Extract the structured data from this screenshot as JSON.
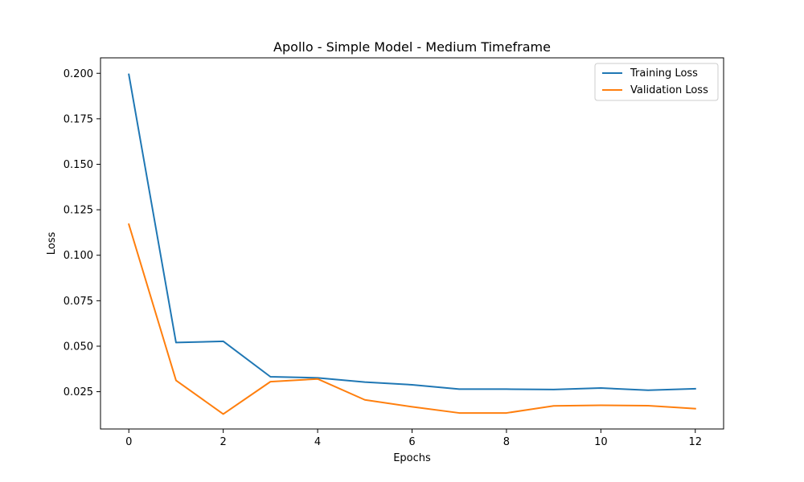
{
  "chart_data": {
    "type": "line",
    "title": "Apollo - Simple Model - Medium Timeframe",
    "xlabel": "Epochs",
    "ylabel": "Loss",
    "x": [
      0,
      1,
      2,
      3,
      4,
      5,
      6,
      7,
      8,
      9,
      10,
      11,
      12
    ],
    "xlim": [
      -0.6,
      12.6
    ],
    "ylim": [
      0.0045,
      0.2085
    ],
    "xticks": [
      0,
      2,
      4,
      6,
      8,
      10,
      12
    ],
    "xtick_labels": [
      "0",
      "2",
      "4",
      "6",
      "8",
      "10",
      "12"
    ],
    "yticks": [
      0.025,
      0.05,
      0.075,
      0.1,
      0.125,
      0.15,
      0.175,
      0.2
    ],
    "ytick_labels": [
      "0.025",
      "0.050",
      "0.075",
      "0.100",
      "0.125",
      "0.150",
      "0.175",
      "0.200"
    ],
    "grid": false,
    "legend_position": "top-right",
    "series": [
      {
        "name": "Training Loss",
        "color": "#1f77b4",
        "values": [
          0.1994,
          0.052,
          0.0527,
          0.0332,
          0.0326,
          0.0303,
          0.0288,
          0.0264,
          0.0264,
          0.0262,
          0.027,
          0.0258,
          0.0266
        ]
      },
      {
        "name": "Validation Loss",
        "color": "#ff7f0e",
        "values": [
          0.117,
          0.0312,
          0.0127,
          0.0305,
          0.032,
          0.0205,
          0.0167,
          0.0133,
          0.0133,
          0.0172,
          0.0175,
          0.0173,
          0.0157
        ]
      }
    ]
  }
}
